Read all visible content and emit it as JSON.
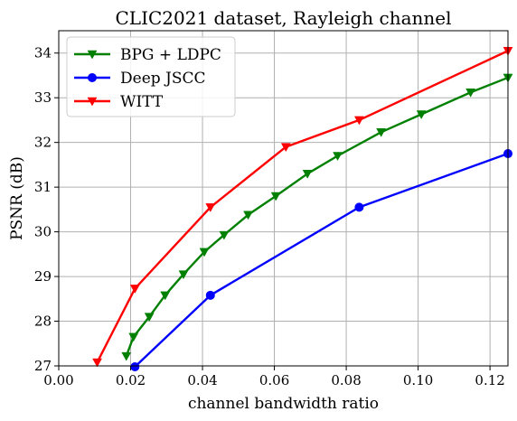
{
  "chart_data": {
    "type": "line",
    "title": "CLIC2021 dataset, Rayleigh channel",
    "xlabel": "channel bandwidth ratio",
    "ylabel": "PSNR (dB)",
    "xlim": [
      0.0,
      0.125
    ],
    "ylim": [
      27,
      34.5
    ],
    "xticks": [
      0.0,
      0.02,
      0.04,
      0.06,
      0.08,
      0.1,
      0.12
    ],
    "xtick_labels": [
      "0.00",
      "0.02",
      "0.04",
      "0.06",
      "0.08",
      "0.10",
      "0.12"
    ],
    "yticks": [
      27,
      28,
      29,
      30,
      31,
      32,
      33,
      34
    ],
    "ytick_labels": [
      "27",
      "28",
      "29",
      "30",
      "31",
      "32",
      "33",
      "34"
    ],
    "grid": true,
    "legend_position": "top-left",
    "series": [
      {
        "name": "BPG + LDPC",
        "color": "#008000",
        "marker": "triangle-down",
        "points": [
          [
            0.0188,
            27.22
          ],
          [
            0.0208,
            27.65
          ],
          [
            0.0252,
            28.1
          ],
          [
            0.0296,
            28.58
          ],
          [
            0.0347,
            29.05
          ],
          [
            0.0405,
            29.55
          ],
          [
            0.046,
            29.93
          ],
          [
            0.0527,
            30.38
          ],
          [
            0.0604,
            30.8
          ],
          [
            0.0692,
            31.3
          ],
          [
            0.0776,
            31.7
          ],
          [
            0.0897,
            32.23
          ],
          [
            0.1009,
            32.63
          ],
          [
            0.1146,
            33.12
          ],
          [
            0.125,
            33.45
          ]
        ]
      },
      {
        "name": "Deep JSCC",
        "color": "#0000ff",
        "marker": "circle",
        "points": [
          [
            0.0212,
            26.98
          ],
          [
            0.0422,
            28.58
          ],
          [
            0.0836,
            30.55
          ],
          [
            0.125,
            31.75
          ]
        ]
      },
      {
        "name": "WITT",
        "color": "#ff0000",
        "marker": "triangle-down",
        "points": [
          [
            0.0107,
            27.08
          ],
          [
            0.0212,
            28.73
          ],
          [
            0.0422,
            30.55
          ],
          [
            0.0632,
            31.9
          ],
          [
            0.0836,
            32.5
          ],
          [
            0.125,
            34.05
          ]
        ]
      }
    ]
  }
}
